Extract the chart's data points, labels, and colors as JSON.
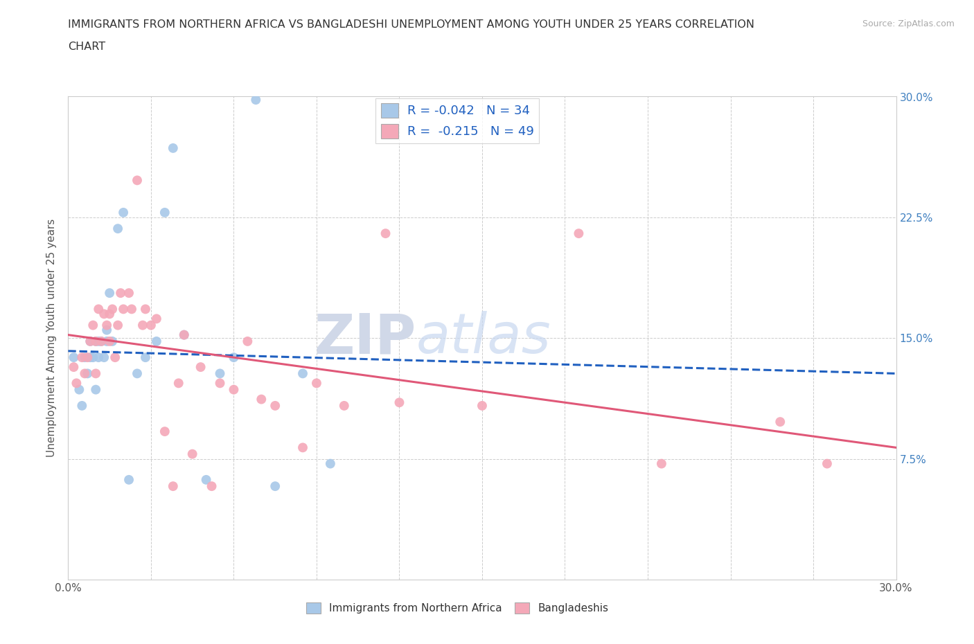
{
  "title_line1": "IMMIGRANTS FROM NORTHERN AFRICA VS BANGLADESHI UNEMPLOYMENT AMONG YOUTH UNDER 25 YEARS CORRELATION",
  "title_line2": "CHART",
  "source_text": "Source: ZipAtlas.com",
  "ylabel": "Unemployment Among Youth under 25 years",
  "xlim": [
    0.0,
    0.3
  ],
  "ylim": [
    0.0,
    0.3
  ],
  "watermark_zip": "ZIP",
  "watermark_atlas": "atlas",
  "color_blue": "#a8c8e8",
  "color_pink": "#f4a8b8",
  "line_blue": "#2060c0",
  "line_pink": "#e05878",
  "R_blue": "-0.042",
  "N_blue": "34",
  "R_pink": "-0.215",
  "N_pink": "49",
  "legend1_label": "Immigrants from Northern Africa",
  "legend2_label": "Bangladeshis",
  "blue_scatter_x": [
    0.002,
    0.004,
    0.005,
    0.006,
    0.007,
    0.008,
    0.008,
    0.009,
    0.01,
    0.01,
    0.011,
    0.011,
    0.012,
    0.013,
    0.014,
    0.014,
    0.015,
    0.016,
    0.018,
    0.02,
    0.022,
    0.025,
    0.028,
    0.032,
    0.035,
    0.038,
    0.042,
    0.05,
    0.055,
    0.06,
    0.068,
    0.075,
    0.085,
    0.095
  ],
  "blue_scatter_y": [
    0.138,
    0.118,
    0.108,
    0.138,
    0.128,
    0.138,
    0.148,
    0.138,
    0.148,
    0.118,
    0.138,
    0.148,
    0.148,
    0.138,
    0.148,
    0.155,
    0.178,
    0.148,
    0.218,
    0.228,
    0.062,
    0.128,
    0.138,
    0.148,
    0.228,
    0.268,
    0.152,
    0.062,
    0.128,
    0.138,
    0.298,
    0.058,
    0.128,
    0.072
  ],
  "pink_scatter_x": [
    0.002,
    0.003,
    0.005,
    0.006,
    0.007,
    0.008,
    0.009,
    0.01,
    0.01,
    0.011,
    0.012,
    0.013,
    0.014,
    0.015,
    0.015,
    0.016,
    0.017,
    0.018,
    0.019,
    0.02,
    0.022,
    0.023,
    0.025,
    0.027,
    0.028,
    0.03,
    0.032,
    0.035,
    0.038,
    0.04,
    0.042,
    0.045,
    0.048,
    0.052,
    0.055,
    0.06,
    0.065,
    0.07,
    0.075,
    0.085,
    0.09,
    0.1,
    0.115,
    0.12,
    0.15,
    0.185,
    0.215,
    0.258,
    0.275
  ],
  "pink_scatter_y": [
    0.132,
    0.122,
    0.138,
    0.128,
    0.138,
    0.148,
    0.158,
    0.148,
    0.128,
    0.168,
    0.148,
    0.165,
    0.158,
    0.165,
    0.148,
    0.168,
    0.138,
    0.158,
    0.178,
    0.168,
    0.178,
    0.168,
    0.248,
    0.158,
    0.168,
    0.158,
    0.162,
    0.092,
    0.058,
    0.122,
    0.152,
    0.078,
    0.132,
    0.058,
    0.122,
    0.118,
    0.148,
    0.112,
    0.108,
    0.082,
    0.122,
    0.108,
    0.215,
    0.11,
    0.108,
    0.215,
    0.072,
    0.098,
    0.072
  ],
  "blue_line_start_y": 0.142,
  "blue_line_end_y": 0.128,
  "pink_line_start_y": 0.152,
  "pink_line_end_y": 0.082
}
